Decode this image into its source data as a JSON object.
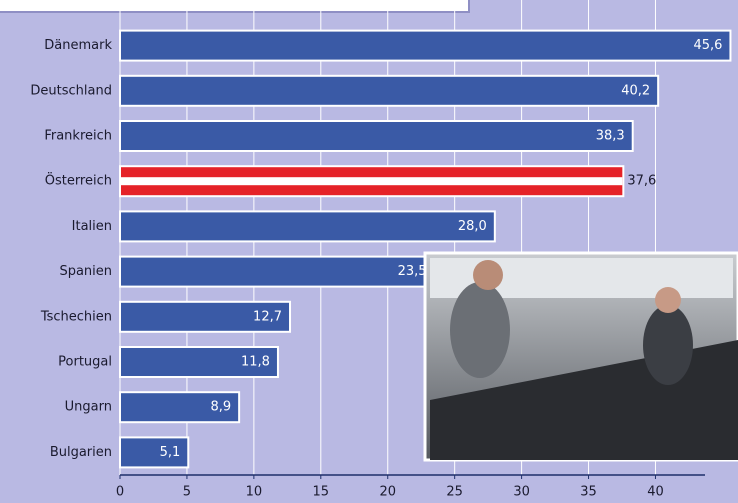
{
  "chart_data": {
    "type": "bar",
    "orientation": "horizontal",
    "categories": [
      "Dänemark",
      "Deutschland",
      "Frankreich",
      "Österreich",
      "Italien",
      "Spanien",
      "Tschechien",
      "Portugal",
      "Ungarn",
      "Bulgarien"
    ],
    "values": [
      45.6,
      40.2,
      38.3,
      37.6,
      28.0,
      23.5,
      12.7,
      11.8,
      8.9,
      5.1
    ],
    "value_labels": [
      "45,6",
      "40,2",
      "38,3",
      "37,6",
      "28,0",
      "23,5",
      "12,7",
      "11,8",
      "8,9",
      "5,1"
    ],
    "colors": [
      "#3a5aa6",
      "#3a5aa6",
      "#3a5aa6",
      "#e52228",
      "#3a5aa6",
      "#3a5aa6",
      "#3a5aa6",
      "#3a5aa6",
      "#3a5aa6",
      "#3a5aa6"
    ],
    "xlim": [
      0,
      43.7
    ],
    "xticks": [
      0,
      5,
      10,
      15,
      20,
      25,
      30,
      35,
      40
    ],
    "grid": true
  }
}
